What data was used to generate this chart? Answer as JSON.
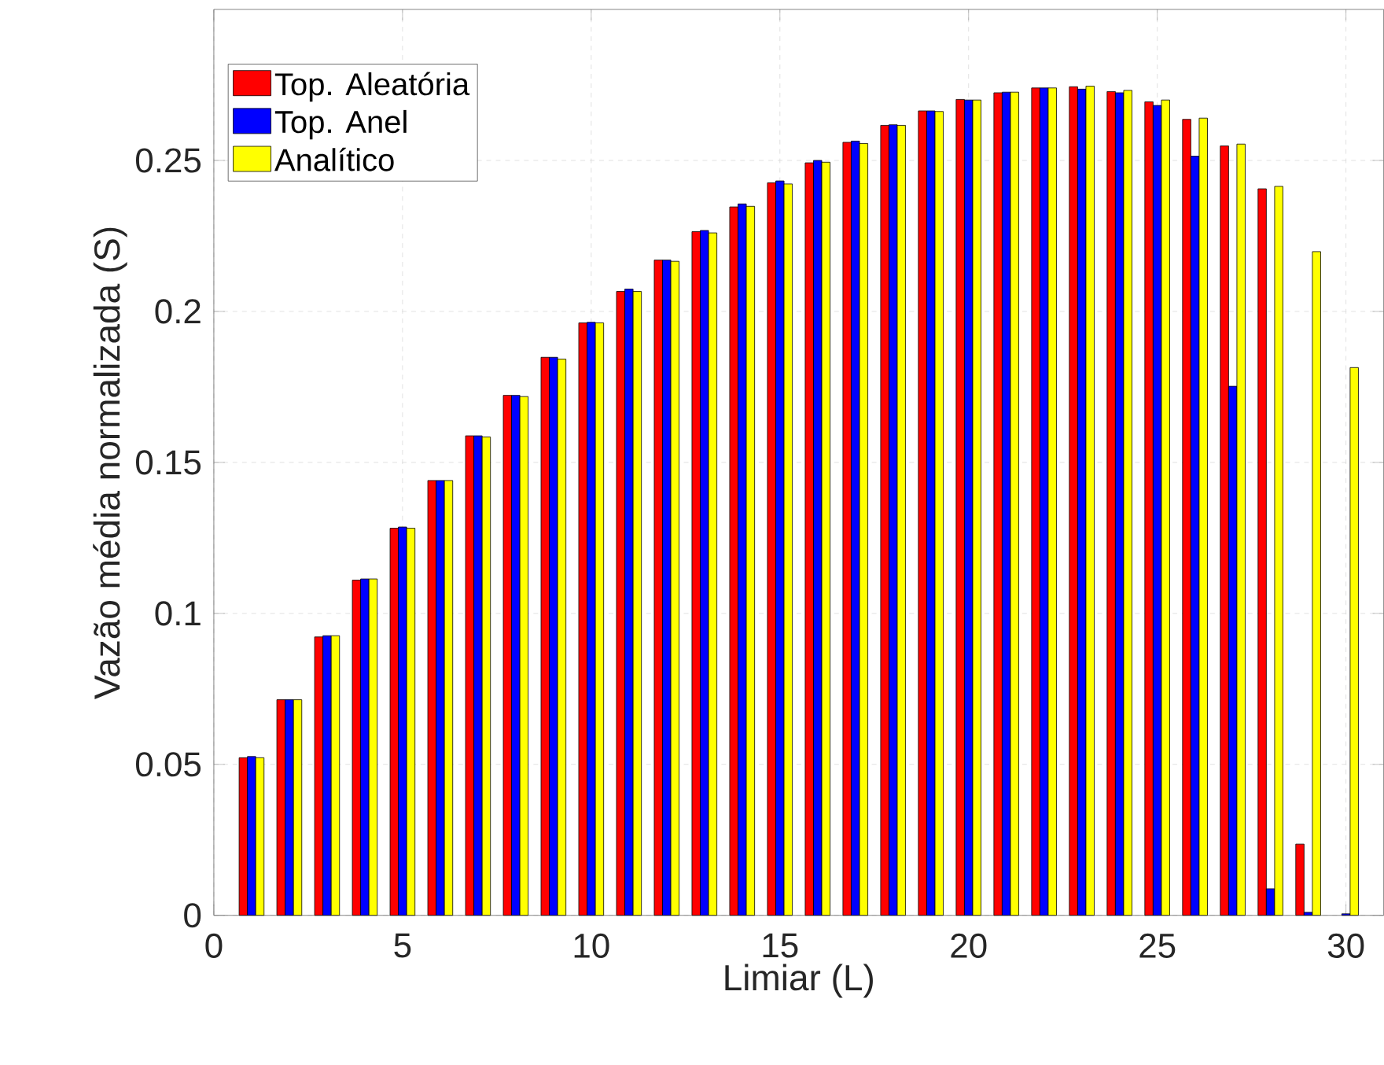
{
  "chart_data": {
    "type": "bar",
    "xlabel": "Limiar (L)",
    "ylabel": "Vazão média normalizada (S)",
    "x": [
      1,
      2,
      3,
      4,
      5,
      6,
      7,
      8,
      9,
      10,
      11,
      12,
      13,
      14,
      15,
      16,
      17,
      18,
      19,
      20,
      21,
      22,
      23,
      24,
      25,
      26,
      27,
      28,
      29,
      30
    ],
    "series": [
      {
        "name": "Top. Aleatória",
        "color": "#ff0000",
        "values": [
          0.0522,
          0.0714,
          0.0922,
          0.111,
          0.1282,
          0.144,
          0.1588,
          0.1722,
          0.1848,
          0.1962,
          0.2066,
          0.217,
          0.2264,
          0.2346,
          0.2426,
          0.2492,
          0.256,
          0.2616,
          0.2664,
          0.2702,
          0.2724,
          0.274,
          0.2744,
          0.2728,
          0.2694,
          0.2636,
          0.2548,
          0.2406,
          0.0236,
          null
        ]
      },
      {
        "name": "Top. Anel",
        "color": "#0000ff",
        "values": [
          0.0526,
          0.0714,
          0.0926,
          0.1114,
          0.1286,
          0.144,
          0.1588,
          0.1722,
          0.1848,
          0.1964,
          0.2074,
          0.217,
          0.2268,
          0.2356,
          0.2432,
          0.25,
          0.2564,
          0.2618,
          0.2664,
          0.27,
          0.2726,
          0.274,
          0.2736,
          0.2724,
          0.2682,
          0.2514,
          0.1752,
          0.0088,
          0.001,
          0.0005
        ]
      },
      {
        "name": "Analítico",
        "color": "#ffff00",
        "values": [
          0.0522,
          0.0714,
          0.0926,
          0.1114,
          0.1282,
          0.144,
          0.1584,
          0.1718,
          0.1842,
          0.1962,
          0.2066,
          0.2166,
          0.226,
          0.2348,
          0.2422,
          0.2494,
          0.2556,
          0.2616,
          0.2662,
          0.27,
          0.2726,
          0.274,
          0.2746,
          0.2732,
          0.27,
          0.264,
          0.2554,
          0.2414,
          0.2198,
          0.1814
        ]
      }
    ],
    "xlim": [
      0,
      31
    ],
    "ylim": [
      0,
      0.3
    ],
    "xticks": [
      0,
      5,
      10,
      15,
      20,
      25,
      30
    ],
    "yticks": [
      0,
      0.05,
      0.1,
      0.15,
      0.2,
      0.25
    ],
    "grid": true,
    "legend": "top left"
  }
}
